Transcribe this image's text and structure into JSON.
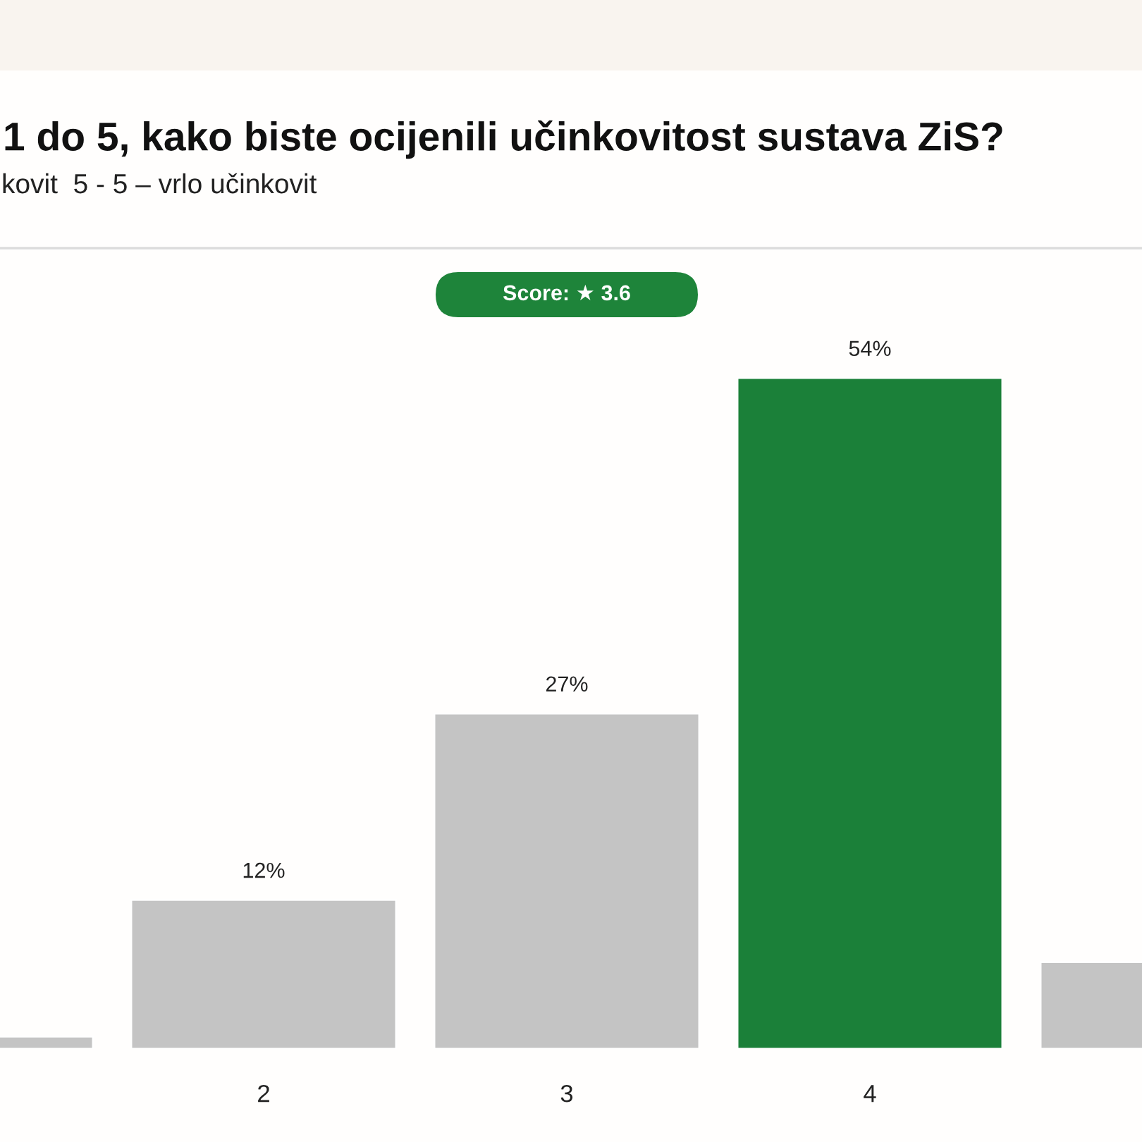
{
  "chart_data": {
    "type": "bar",
    "title": "1 do 5, kako biste ocijenili učinkovitost sustava ZiS?",
    "subtitle": "kovit  5 - 5 – vrlo učinkovit",
    "categories": [
      null,
      "2",
      "3",
      "4",
      null
    ],
    "values": [
      1,
      12,
      27,
      54,
      7
    ],
    "colors": [
      "#c4c4c4",
      "#c4c4c4",
      "#c4c4c4",
      "#1b8039",
      "#c4c4c4"
    ],
    "value_labels": [
      null,
      "12%",
      "27%",
      "54%",
      null
    ],
    "annotations": [
      "Score: ★ 3.6"
    ],
    "grid": false,
    "tick_labels": "x"
  }
}
